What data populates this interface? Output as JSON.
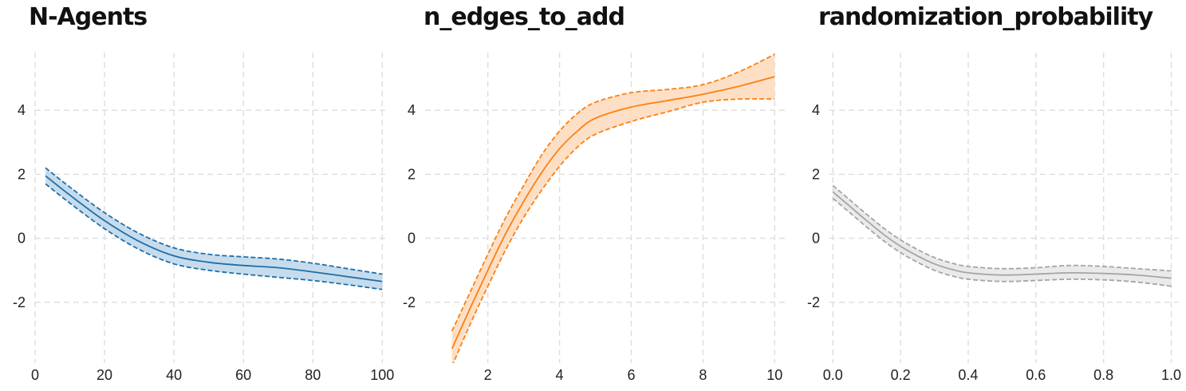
{
  "chart_data": [
    {
      "type": "line",
      "title": "N-Agents",
      "xlabel": "",
      "ylabel": "",
      "xlim": [
        0,
        102
      ],
      "ylim": [
        -3.9,
        5.8
      ],
      "xticks": [
        0,
        20,
        40,
        60,
        80,
        100
      ],
      "xtick_labels": [
        "0",
        "20",
        "40",
        "60",
        "80",
        "100"
      ],
      "yticks": [
        -2,
        0,
        2,
        4
      ],
      "ytick_labels": [
        "-2",
        "0",
        "2",
        "4"
      ],
      "grid": true,
      "color": "#1f6fa8",
      "fill_color": "#bcd6ea",
      "x": [
        3,
        10,
        20,
        30,
        40,
        50,
        60,
        70,
        80,
        90,
        100
      ],
      "y": [
        1.95,
        1.35,
        0.55,
        -0.1,
        -0.55,
        -0.75,
        -0.85,
        -0.92,
        -1.05,
        -1.2,
        -1.35
      ],
      "lower": [
        1.7,
        1.1,
        0.3,
        -0.35,
        -0.8,
        -1.0,
        -1.12,
        -1.22,
        -1.32,
        -1.45,
        -1.6
      ],
      "upper": [
        2.2,
        1.6,
        0.8,
        0.15,
        -0.3,
        -0.5,
        -0.58,
        -0.65,
        -0.78,
        -0.95,
        -1.12
      ]
    },
    {
      "type": "line",
      "title": "n_edges_to_add",
      "xlabel": "",
      "ylabel": "",
      "xlim": [
        0.25,
        10.35
      ],
      "ylim": [
        -3.9,
        5.8
      ],
      "xticks": [
        2,
        4,
        6,
        8,
        10
      ],
      "xtick_labels": [
        "2",
        "4",
        "6",
        "8",
        "10"
      ],
      "yticks": [
        -2,
        0,
        2,
        4
      ],
      "ytick_labels": [
        "-2",
        "0",
        "2",
        "4"
      ],
      "grid": true,
      "color": "#ff7f0e",
      "fill_color": "#fdd9bc",
      "x": [
        1,
        1.5,
        2,
        2.5,
        3,
        3.5,
        4,
        4.5,
        5,
        6,
        7,
        8,
        9,
        10
      ],
      "y": [
        -3.45,
        -2.2,
        -1.0,
        0.15,
        1.15,
        2.05,
        2.8,
        3.35,
        3.75,
        4.1,
        4.3,
        4.5,
        4.75,
        5.05
      ],
      "lower": [
        -4.0,
        -2.7,
        -1.5,
        -0.35,
        0.65,
        1.5,
        2.25,
        2.85,
        3.25,
        3.65,
        3.95,
        4.25,
        4.35,
        4.35
      ],
      "upper": [
        -2.9,
        -1.7,
        -0.5,
        0.65,
        1.65,
        2.6,
        3.35,
        3.9,
        4.25,
        4.55,
        4.65,
        4.8,
        5.2,
        5.75
      ]
    },
    {
      "type": "line",
      "title": "randomization_probability",
      "xlabel": "",
      "ylabel": "",
      "xlim": [
        -0.01,
        1.02
      ],
      "ylim": [
        -3.9,
        5.8
      ],
      "xticks": [
        0.0,
        0.2,
        0.4,
        0.6,
        0.8,
        1.0
      ],
      "xtick_labels": [
        "0.0",
        "0.2",
        "0.4",
        "0.6",
        "0.8",
        "1.0"
      ],
      "yticks": [
        -2,
        0,
        2,
        4
      ],
      "ytick_labels": [
        "-2",
        "0",
        "2",
        "4"
      ],
      "grid": true,
      "color": "#a5a5a5",
      "fill_color": "#e6e6e6",
      "x": [
        0.0,
        0.05,
        0.1,
        0.15,
        0.2,
        0.25,
        0.3,
        0.35,
        0.4,
        0.5,
        0.6,
        0.7,
        0.8,
        0.9,
        1.0
      ],
      "y": [
        1.45,
        1.0,
        0.55,
        0.12,
        -0.25,
        -0.55,
        -0.8,
        -0.97,
        -1.08,
        -1.15,
        -1.12,
        -1.08,
        -1.1,
        -1.15,
        -1.25
      ],
      "lower": [
        1.25,
        0.8,
        0.35,
        -0.08,
        -0.45,
        -0.75,
        -1.0,
        -1.17,
        -1.28,
        -1.35,
        -1.32,
        -1.28,
        -1.3,
        -1.37,
        -1.5
      ],
      "upper": [
        1.65,
        1.2,
        0.75,
        0.32,
        -0.05,
        -0.35,
        -0.6,
        -0.77,
        -0.88,
        -0.95,
        -0.92,
        -0.85,
        -0.88,
        -0.95,
        -1.02
      ]
    }
  ]
}
